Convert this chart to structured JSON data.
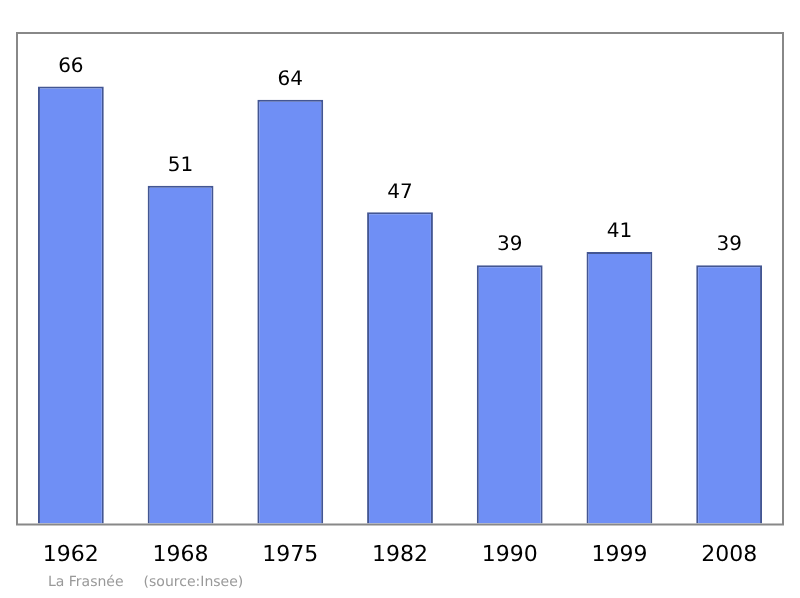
{
  "chart_data": {
    "type": "bar",
    "categories": [
      "1962",
      "1968",
      "1975",
      "1982",
      "1990",
      "1999",
      "2008"
    ],
    "values": [
      66,
      51,
      64,
      47,
      39,
      41,
      39
    ],
    "color": "#6f8ff5",
    "data_labels": true,
    "grid": false,
    "legend": false,
    "tick_labels": "x",
    "annotations": [
      "La Frasnée",
      "(source:Insee)"
    ]
  }
}
